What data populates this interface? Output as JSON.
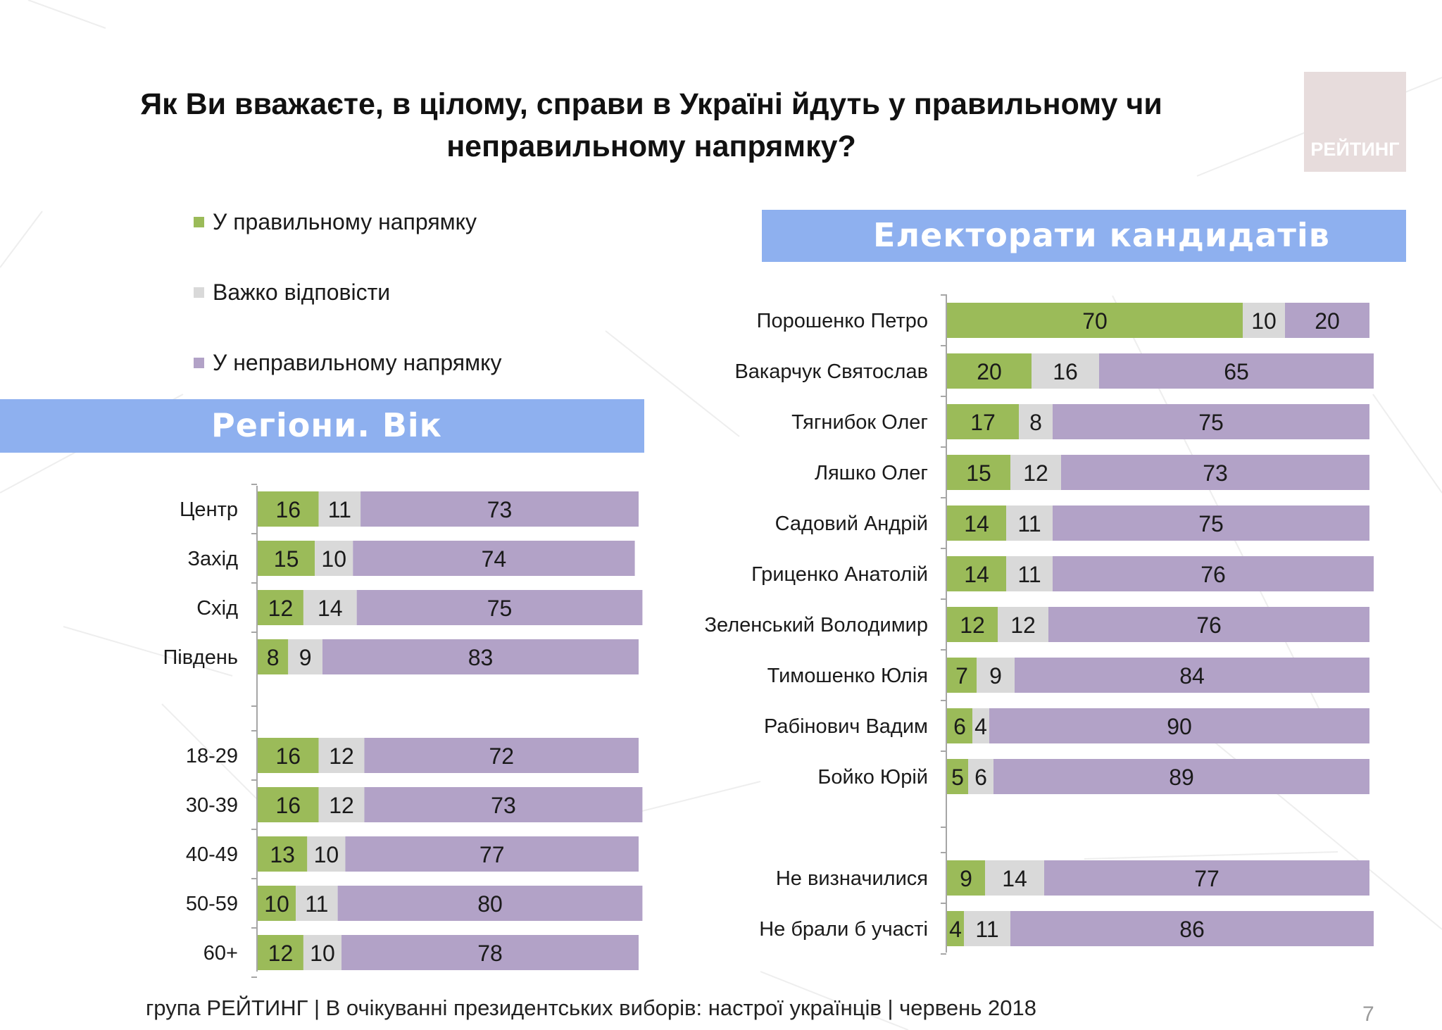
{
  "title": "Як Ви вважаєте, в цілому, справи в Україні йдуть у правильному чи неправильному напрямку?",
  "logo": {
    "text": "РЕЙТИНГ"
  },
  "legend": [
    {
      "label": "У правильному напрямку",
      "color": "#9bbb59"
    },
    {
      "label": "Важко відповісти",
      "color": "#d9d9d9"
    },
    {
      "label": "У неправильному напрямку",
      "color": "#b2a2c7"
    }
  ],
  "chart_data": [
    {
      "type": "bar",
      "orientation": "horizontal",
      "stacked": true,
      "title": "Регіони. Вік",
      "series_names": [
        "У правильному напрямку",
        "Важко відповісти",
        "У неправильному напрямку"
      ],
      "categories": [
        "Центр",
        "Захід",
        "Схід",
        "Південь",
        "18-29",
        "30-39",
        "40-49",
        "50-59",
        "60+"
      ],
      "series": [
        {
          "name": "У правильному напрямку",
          "values": [
            16,
            15,
            12,
            8,
            16,
            16,
            13,
            10,
            12
          ]
        },
        {
          "name": "Важко відповісти",
          "values": [
            11,
            10,
            14,
            9,
            12,
            12,
            10,
            11,
            10
          ]
        },
        {
          "name": "У неправильному напрямку",
          "values": [
            73,
            74,
            75,
            83,
            72,
            73,
            77,
            80,
            78
          ]
        }
      ],
      "xlim": [
        0,
        100
      ],
      "group_gap_after": "Південь"
    },
    {
      "type": "bar",
      "orientation": "horizontal",
      "stacked": true,
      "title": "Електорати кандидатів",
      "series_names": [
        "У правильному напрямку",
        "Важко відповісти",
        "У неправильному напрямку"
      ],
      "categories": [
        "Порошенко Петро",
        "Вакарчук Святослав",
        "Тягнибок Олег",
        "Ляшко Олег",
        "Садовий Андрій",
        "Гриценко Анатолій",
        "Зеленський Володимир",
        "Тимошенко Юлія",
        "Рабінович Вадим",
        "Бойко Юрій",
        "Не визначилися",
        "Не брали б участі"
      ],
      "series": [
        {
          "name": "У правильному напрямку",
          "values": [
            70,
            20,
            17,
            15,
            14,
            14,
            12,
            7,
            6,
            5,
            9,
            4
          ]
        },
        {
          "name": "Важко відповісти",
          "values": [
            10,
            16,
            8,
            12,
            11,
            11,
            12,
            9,
            4,
            6,
            14,
            11
          ]
        },
        {
          "name": "У неправильному напрямку",
          "values": [
            20,
            65,
            75,
            73,
            75,
            76,
            76,
            84,
            90,
            89,
            77,
            86
          ]
        }
      ],
      "xlim": [
        0,
        100
      ],
      "group_gap_after": "Бойко Юрій"
    }
  ],
  "footer": "група РЕЙТИНГ  | В очікуванні президентських виборів: настрої українців |  червень 2018",
  "page_number": "7"
}
